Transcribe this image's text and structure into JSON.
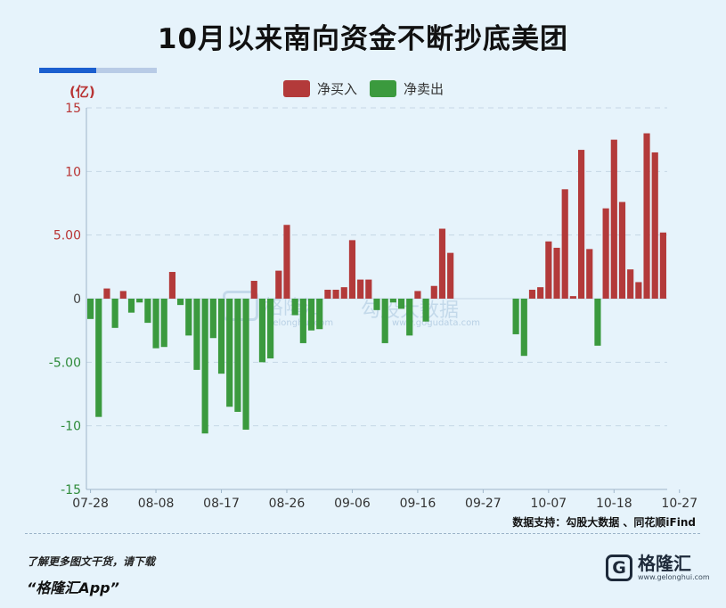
{
  "title": "10月以来南向资金不断抄底美团",
  "unit_label": "(亿)",
  "legend": {
    "buy_label": "净买入",
    "sell_label": "净卖出"
  },
  "colors": {
    "buy": "#b33a3a",
    "sell": "#3b9a3e",
    "pos_tick": "#b83434",
    "neg_tick": "#2e8b3a"
  },
  "watermark": {
    "left": "格隆汇",
    "left_url": "gelonghui.com",
    "right": "勾股大数据",
    "right_url": "www.gogudata.com"
  },
  "source": "数据支持：勾股大数据 、同花顺iFind",
  "promo": {
    "line1": "了解更多图文干货，请下载",
    "line2": "“格隆汇App”"
  },
  "brand": {
    "mark": "G",
    "name": "格隆汇",
    "url": "www.gelonghui.com"
  },
  "chart_data": {
    "type": "bar",
    "ylim": [
      -15,
      15
    ],
    "yticks": [
      {
        "value": 15,
        "label": "15"
      },
      {
        "value": 10,
        "label": "10"
      },
      {
        "value": 5,
        "label": "5.00"
      },
      {
        "value": 0,
        "label": "0"
      },
      {
        "value": -5,
        "label": "-5.00"
      },
      {
        "value": -10,
        "label": "-10"
      },
      {
        "value": -15,
        "label": "-15"
      }
    ],
    "xtick_labels": [
      {
        "index": 0,
        "label": "07-28"
      },
      {
        "index": 8,
        "label": "08-08"
      },
      {
        "index": 16,
        "label": "08-17"
      },
      {
        "index": 24,
        "label": "08-26"
      },
      {
        "index": 32,
        "label": "09-06"
      },
      {
        "index": 40,
        "label": "09-16"
      },
      {
        "index": 48,
        "label": "09-27"
      },
      {
        "index": 56,
        "label": "10-07"
      },
      {
        "index": 64,
        "label": "10-18"
      },
      {
        "index": 72,
        "label": "10-27"
      }
    ],
    "series": [
      {
        "name": "净买入",
        "color_key": "buy"
      },
      {
        "name": "净卖出",
        "color_key": "sell"
      }
    ],
    "values": [
      -1.6,
      -9.3,
      0.8,
      -2.3,
      0.6,
      -1.1,
      -0.3,
      -1.9,
      -3.9,
      -3.8,
      2.1,
      -0.5,
      -2.9,
      -5.6,
      -10.6,
      -3.1,
      -5.9,
      -8.5,
      -8.9,
      -10.3,
      1.4,
      -5.0,
      -4.7,
      2.2,
      5.8,
      -1.3,
      -3.5,
      -2.5,
      -2.4,
      0.7,
      0.7,
      0.9,
      4.6,
      1.5,
      1.5,
      -0.9,
      -3.5,
      -0.3,
      -0.8,
      -2.9,
      0.6,
      -1.8,
      1.0,
      5.5,
      3.6,
      0,
      0,
      0,
      0,
      0,
      0,
      0,
      -2.8,
      -4.5,
      0.7,
      0.9,
      4.5,
      4.0,
      8.6,
      0.2,
      11.7,
      3.9,
      -3.7,
      7.1,
      12.5,
      7.6,
      2.3,
      1.3,
      13.0,
      11.5,
      5.2
    ]
  }
}
